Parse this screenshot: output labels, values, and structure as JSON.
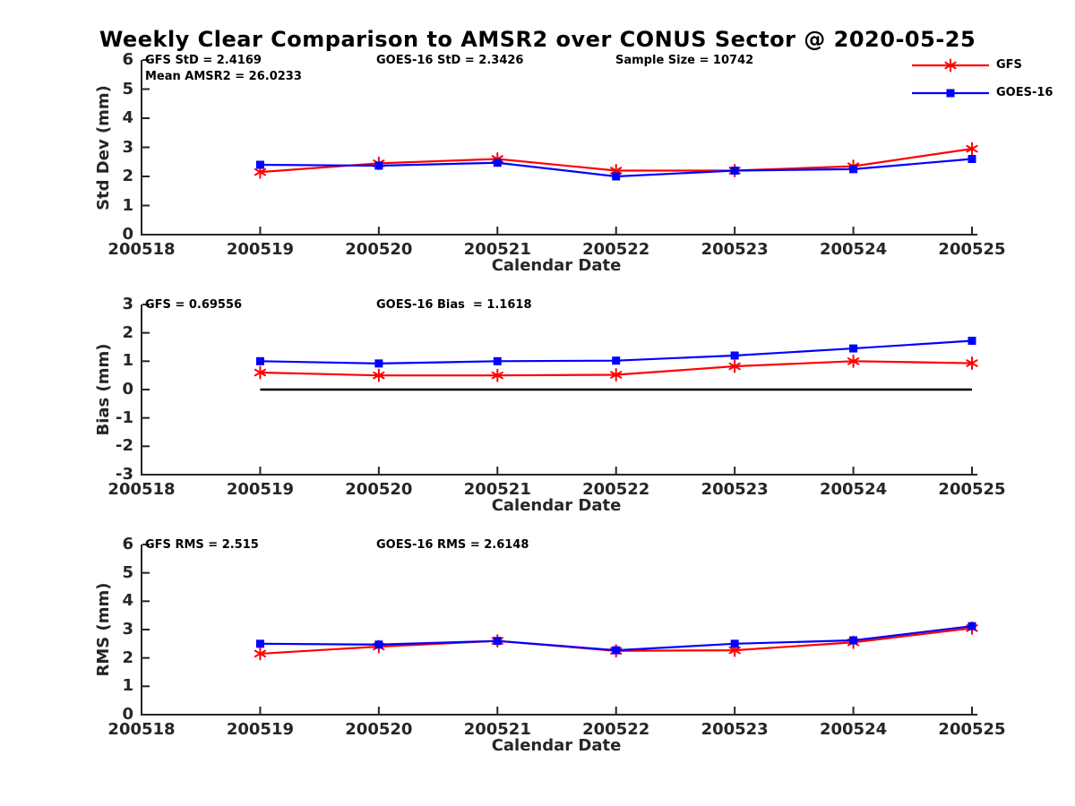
{
  "title": "Weekly Clear Comparison to AMSR2 over CONUS Sector @ 2020-05-25",
  "legend": {
    "position": "top-right-outside",
    "entries": [
      {
        "label": "GFS",
        "color": "#ff0000",
        "marker": "asterisk"
      },
      {
        "label": "GOES-16",
        "color": "#0000ff",
        "marker": "square"
      }
    ]
  },
  "colors": {
    "gfs": "#ff0000",
    "goes16": "#0000ff",
    "axis": "#262626",
    "zero_line": "#000000",
    "background": "#ffffff"
  },
  "chart_data": [
    {
      "type": "line",
      "name": "std-dev",
      "ylabel": "Std Dev (mm)",
      "xlabel": "Calendar Date",
      "ylim": [
        0,
        6
      ],
      "yticks": [
        0,
        1,
        2,
        3,
        4,
        5,
        6
      ],
      "x_ticks": [
        "200518",
        "200519",
        "200520",
        "200521",
        "200522",
        "200523",
        "200524",
        "200525"
      ],
      "x": [
        "200519",
        "200520",
        "200521",
        "200522",
        "200523",
        "200524",
        "200525"
      ],
      "series": [
        {
          "name": "GFS",
          "color": "#ff0000",
          "marker": "asterisk",
          "values": [
            2.15,
            2.45,
            2.6,
            2.2,
            2.2,
            2.35,
            2.95
          ]
        },
        {
          "name": "GOES-16",
          "color": "#0000ff",
          "marker": "square",
          "values": [
            2.4,
            2.37,
            2.47,
            2.0,
            2.2,
            2.25,
            2.6
          ]
        }
      ],
      "annotations": [
        {
          "text": "GFS StD = 2.4169",
          "slot": 0,
          "row": 0
        },
        {
          "text": "Mean AMSR2 = 26.0233",
          "slot": 0,
          "row": 1
        },
        {
          "text": "GOES-16 StD = 2.3426",
          "slot": 1,
          "row": 0
        },
        {
          "text": "Sample Size = 10742",
          "slot": 2,
          "row": 0
        }
      ],
      "zero_line": false,
      "grid": false
    },
    {
      "type": "line",
      "name": "bias",
      "ylabel": "Bias (mm)",
      "xlabel": "Calendar Date",
      "ylim": [
        -3,
        3
      ],
      "yticks": [
        -3,
        -2,
        -1,
        0,
        1,
        2,
        3
      ],
      "x_ticks": [
        "200518",
        "200519",
        "200520",
        "200521",
        "200522",
        "200523",
        "200524",
        "200525"
      ],
      "x": [
        "200519",
        "200520",
        "200521",
        "200522",
        "200523",
        "200524",
        "200525"
      ],
      "series": [
        {
          "name": "GFS",
          "color": "#ff0000",
          "marker": "asterisk",
          "values": [
            0.6,
            0.5,
            0.5,
            0.52,
            0.82,
            1.0,
            0.93
          ]
        },
        {
          "name": "GOES-16",
          "color": "#0000ff",
          "marker": "square",
          "values": [
            1.0,
            0.92,
            1.0,
            1.02,
            1.2,
            1.45,
            1.72
          ]
        }
      ],
      "annotations": [
        {
          "text": "GFS = 0.69556",
          "slot": 0,
          "row": 0
        },
        {
          "text": "GOES-16 Bias  = 1.1618",
          "slot": 1,
          "row": 0
        }
      ],
      "zero_line": true,
      "grid": false
    },
    {
      "type": "line",
      "name": "rms",
      "ylabel": "RMS (mm)",
      "xlabel": "Calendar Date",
      "ylim": [
        0,
        6
      ],
      "yticks": [
        0,
        1,
        2,
        3,
        4,
        5,
        6
      ],
      "x_ticks": [
        "200518",
        "200519",
        "200520",
        "200521",
        "200522",
        "200523",
        "200524",
        "200525"
      ],
      "x": [
        "200519",
        "200520",
        "200521",
        "200522",
        "200523",
        "200524",
        "200525"
      ],
      "series": [
        {
          "name": "GFS",
          "color": "#ff0000",
          "marker": "asterisk",
          "values": [
            2.15,
            2.4,
            2.6,
            2.25,
            2.27,
            2.55,
            3.05
          ]
        },
        {
          "name": "GOES-16",
          "color": "#0000ff",
          "marker": "square",
          "values": [
            2.5,
            2.47,
            2.6,
            2.27,
            2.5,
            2.62,
            3.12
          ]
        }
      ],
      "annotations": [
        {
          "text": "GFS RMS = 2.515",
          "slot": 0,
          "row": 0
        },
        {
          "text": "GOES-16 RMS = 2.6148",
          "slot": 1,
          "row": 0
        }
      ],
      "zero_line": false,
      "grid": false
    }
  ]
}
